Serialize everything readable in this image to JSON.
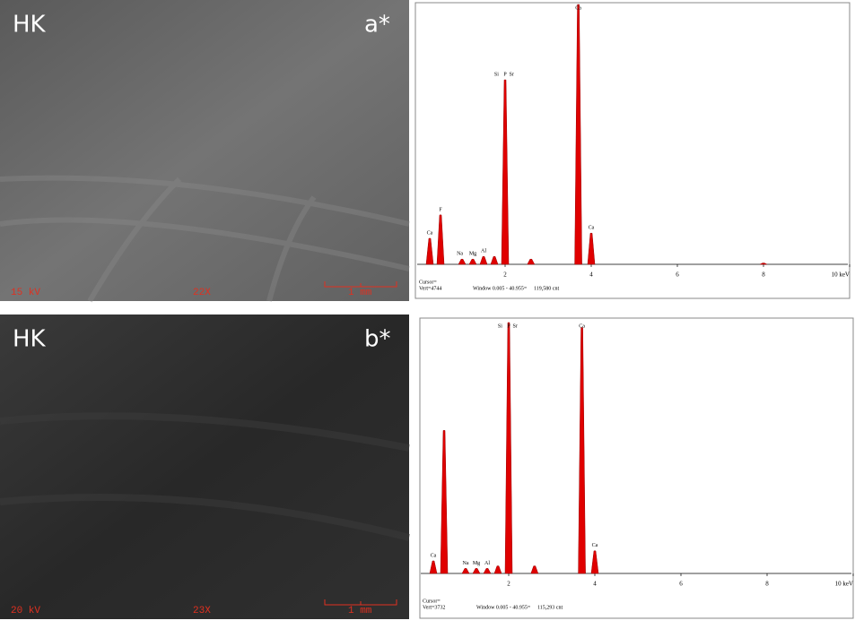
{
  "panels": [
    {
      "label": "HK",
      "tag": "a*",
      "voltage": "15 kV",
      "magnification": "22X",
      "scale": "1 mm"
    },
    {
      "label": "HK",
      "tag": "b*",
      "voltage": "20 kV",
      "magnification": "23X",
      "scale": "1 mm"
    }
  ],
  "chart_data": [
    {
      "type": "spectrum",
      "color": "#e00000",
      "x": [
        0.25,
        0.5,
        1.0,
        1.25,
        1.5,
        1.75,
        2.0,
        2.6,
        3.7,
        4.0,
        8.0
      ],
      "values": [
        10,
        19,
        2,
        2,
        3,
        3,
        71,
        2,
        100,
        12,
        0.5
      ],
      "xlim": [
        0,
        10
      ],
      "ylim": [
        0,
        100
      ],
      "xticks": [
        2,
        4,
        6,
        8,
        {
          "value": 10,
          "label": "10 keV"
        }
      ],
      "annotations": [
        {
          "text": "Ca",
          "x": 0.25
        },
        {
          "text": "F",
          "x": 0.5
        },
        {
          "text": "Na",
          "x": 0.95
        },
        {
          "text": "Mg",
          "x": 1.25
        },
        {
          "text": "Al",
          "x": 1.5
        },
        {
          "text": "Si",
          "x": 1.8
        },
        {
          "text": "Sr",
          "x": 2.15
        },
        {
          "text": "P",
          "x": 2.0
        },
        {
          "text": "Ca",
          "x": 3.7
        },
        {
          "text": "Ca",
          "x": 4.0
        }
      ],
      "footer": [
        "Cursor=",
        "Vert=4744",
        "Window 0.005 - 40.955=",
        "119,580 cnt"
      ]
    },
    {
      "type": "spectrum",
      "color": "#e00000",
      "x": [
        0.25,
        0.5,
        1.0,
        1.25,
        1.5,
        1.75,
        2.0,
        2.6,
        3.7,
        4.0
      ],
      "values": [
        5,
        57,
        2,
        2,
        2,
        3,
        100,
        3,
        98,
        9
      ],
      "xlim": [
        0,
        10
      ],
      "ylim": [
        0,
        100
      ],
      "xticks": [
        2,
        4,
        6,
        8,
        {
          "value": 10,
          "label": "10 keV"
        }
      ],
      "annotations": [
        {
          "text": "Ca",
          "x": 0.25
        },
        {
          "text": "Na",
          "x": 1.0
        },
        {
          "text": "Mg",
          "x": 1.25
        },
        {
          "text": "Al",
          "x": 1.5
        },
        {
          "text": "Si",
          "x": 1.8
        },
        {
          "text": "Sr",
          "x": 2.15
        },
        {
          "text": "P",
          "x": 2.0
        },
        {
          "text": "Ca",
          "x": 3.7
        },
        {
          "text": "Ca",
          "x": 4.0
        }
      ],
      "footer": [
        "Cursor=",
        "Vert=3732",
        "Window 0.005 - 40.955=",
        "115,293 cnt"
      ]
    }
  ]
}
